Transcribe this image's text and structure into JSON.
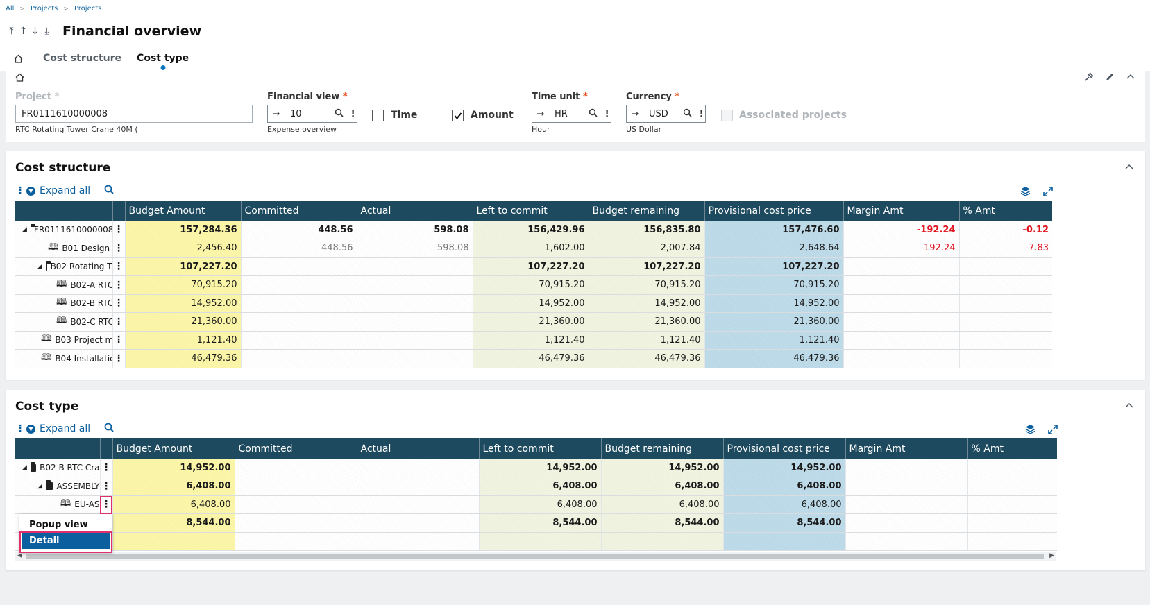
{
  "breadcrumb": [
    "All",
    "Projects",
    "Projects"
  ],
  "page_title": "Financial overview",
  "tabs": [
    "Cost structure",
    "Cost type"
  ],
  "criteria": {
    "project_label": "Project",
    "project_value": "FR0111610000008",
    "project_desc": "RTC Rotating Tower Crane 40M (",
    "financial_view_label": "Financial view",
    "financial_view_value": "10",
    "financial_view_desc": "Expense overview",
    "time_label": "Time",
    "time_checked": false,
    "amount_label": "Amount",
    "amount_checked": true,
    "time_unit_label": "Time unit",
    "time_unit_value": "HR",
    "time_unit_desc": "Hour",
    "currency_label": "Currency",
    "currency_value": "USD",
    "currency_desc": "US Dollar",
    "associated_label": "Associated projects"
  },
  "cost_structure": {
    "title": "Cost structure",
    "expand_all": "Expand all",
    "columns": [
      "Budget Amount",
      "Committed",
      "Actual",
      "Left to commit",
      "Budget remaining",
      "Provisional cost price",
      "Margin Amt",
      "% Amt"
    ],
    "rows": [
      {
        "label": "FR0111610000008",
        "icon": "folder",
        "level": 0,
        "expand": true,
        "bold": true,
        "values": [
          "157,284.36",
          "448.56",
          "598.08",
          "156,429.96",
          "156,835.80",
          "157,476.60",
          "-192.24",
          "-0.12"
        ]
      },
      {
        "label": "B01 Design",
        "icon": "book",
        "level": 1,
        "expand": false,
        "bold": false,
        "values": [
          "2,456.40",
          "448.56",
          "598.08",
          "1,602.00",
          "2,007.84",
          "2,648.64",
          "-192.24",
          "-7.83"
        ]
      },
      {
        "label": "B02 Rotating T",
        "icon": "folder",
        "level": 1,
        "expand": true,
        "bold": true,
        "values": [
          "107,227.20",
          "",
          "",
          "107,227.20",
          "107,227.20",
          "107,227.20",
          "",
          ""
        ]
      },
      {
        "label": "B02-A RTC",
        "icon": "book",
        "level": 2,
        "expand": false,
        "bold": false,
        "values": [
          "70,915.20",
          "",
          "",
          "70,915.20",
          "70,915.20",
          "70,915.20",
          "",
          ""
        ]
      },
      {
        "label": "B02-B RTC",
        "icon": "book",
        "level": 2,
        "expand": false,
        "bold": false,
        "values": [
          "14,952.00",
          "",
          "",
          "14,952.00",
          "14,952.00",
          "14,952.00",
          "",
          ""
        ]
      },
      {
        "label": "B02-C RTC",
        "icon": "book",
        "level": 2,
        "expand": false,
        "bold": false,
        "values": [
          "21,360.00",
          "",
          "",
          "21,360.00",
          "21,360.00",
          "21,360.00",
          "",
          ""
        ]
      },
      {
        "label": "B03 Project m",
        "icon": "book",
        "level": 1,
        "expand": false,
        "bold": false,
        "values": [
          "1,121.40",
          "",
          "",
          "1,121.40",
          "1,121.40",
          "1,121.40",
          "",
          ""
        ]
      },
      {
        "label": "B04 Installatic",
        "icon": "book",
        "level": 1,
        "expand": false,
        "bold": false,
        "values": [
          "46,479.36",
          "",
          "",
          "46,479.36",
          "46,479.36",
          "46,479.36",
          "",
          ""
        ]
      }
    ]
  },
  "cost_type": {
    "title": "Cost type",
    "expand_all": "Expand all",
    "columns": [
      "Budget Amount",
      "Committed",
      "Actual",
      "Left to commit",
      "Budget remaining",
      "Provisional cost price",
      "Margin Amt",
      "% Amt"
    ],
    "rows": [
      {
        "label": "B02-B RTC Cra",
        "icon": "folder",
        "level": 0,
        "expand": true,
        "bold": true,
        "values": [
          "14,952.00",
          "",
          "",
          "14,952.00",
          "14,952.00",
          "14,952.00",
          "",
          ""
        ]
      },
      {
        "label": "ASSEMBLY",
        "icon": "folder",
        "level": 1,
        "expand": true,
        "bold": true,
        "values": [
          "6,408.00",
          "",
          "",
          "6,408.00",
          "6,408.00",
          "6,408.00",
          "",
          ""
        ]
      },
      {
        "label": "EU-AS",
        "icon": "book",
        "level": 2,
        "expand": false,
        "bold": false,
        "values": [
          "6,408.00",
          "",
          "",
          "6,408.00",
          "6,408.00",
          "6,408.00",
          "",
          ""
        ]
      },
      {
        "label": "",
        "icon": "",
        "level": 0,
        "expand": false,
        "bold": true,
        "values": [
          "8,544.00",
          "",
          "",
          "8,544.00",
          "8,544.00",
          "8,544.00",
          "",
          ""
        ]
      },
      {
        "label": "",
        "icon": "",
        "level": 0,
        "expand": false,
        "bold": false,
        "values": [
          "",
          "",
          "",
          "",
          "",
          "",
          "",
          ""
        ]
      }
    ]
  },
  "popup": {
    "item1": "Popup view",
    "item2": "Detail"
  },
  "colors": {
    "header": "#1d4a5f",
    "accent": "#0b5f9e",
    "negative": "#e0141e",
    "highlight": "#e0306c"
  }
}
